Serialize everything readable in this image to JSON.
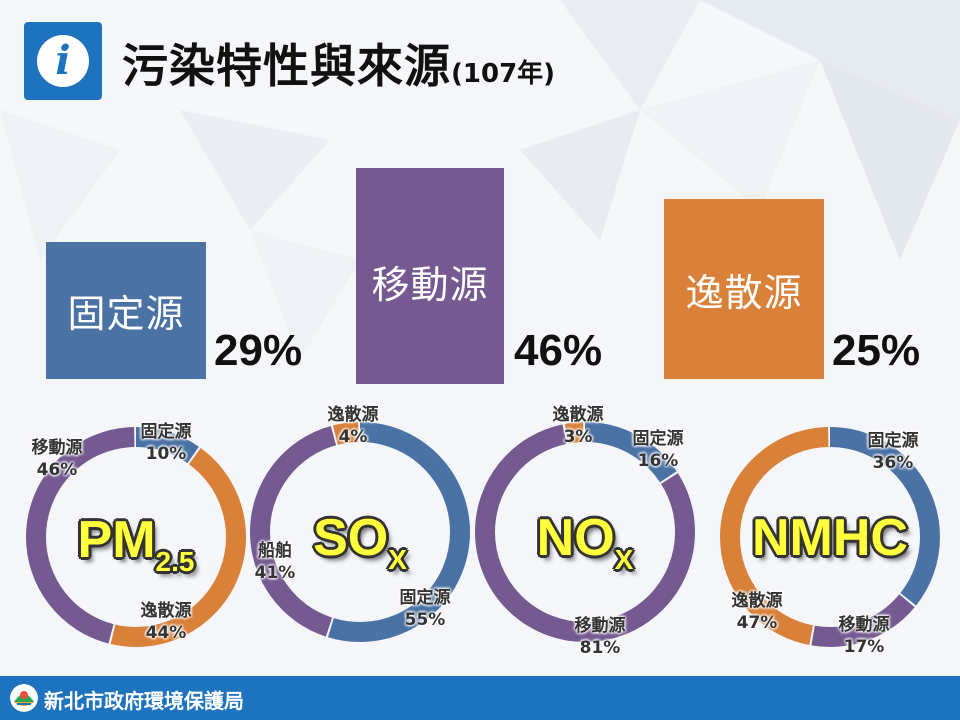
{
  "header": {
    "title": "污染特性與來源",
    "year": "(107年)",
    "info_icon": "info-icon"
  },
  "summary": [
    {
      "label": "固定源",
      "percent": "29%",
      "value": 29,
      "color": "#4a72a5"
    },
    {
      "label": "移動源",
      "percent": "46%",
      "value": 46,
      "color": "#755a92"
    },
    {
      "label": "逸散源",
      "percent": "25%",
      "value": 25,
      "color": "#d98039"
    }
  ],
  "colors": {
    "stationary": "#4a72a5",
    "mobile": "#755a92",
    "fugitive": "#d98039",
    "highlight": "#ffff3c",
    "brand": "#1e73be"
  },
  "chart_data": [
    {
      "type": "pie",
      "title": "PM",
      "title_sub": "2.5",
      "slices": [
        {
          "label": "固定源",
          "pct": "10%",
          "value": 10,
          "color": "#4a72a5"
        },
        {
          "label": "逸散源",
          "pct": "44%",
          "value": 44,
          "color": "#d98039"
        },
        {
          "label": "移動源",
          "pct": "46%",
          "value": 46,
          "color": "#755a92"
        }
      ]
    },
    {
      "type": "pie",
      "title": "SO",
      "title_sub": "X",
      "slices": [
        {
          "label": "固定源",
          "pct": "55%",
          "value": 55,
          "color": "#4a72a5"
        },
        {
          "label": "船舶",
          "pct": "41%",
          "value": 41,
          "color": "#755a92"
        },
        {
          "label": "逸散源",
          "pct": "4%",
          "value": 4,
          "color": "#d98039"
        }
      ]
    },
    {
      "type": "pie",
      "title": "NO",
      "title_sub": "X",
      "slices": [
        {
          "label": "固定源",
          "pct": "16%",
          "value": 16,
          "color": "#4a72a5"
        },
        {
          "label": "移動源",
          "pct": "81%",
          "value": 81,
          "color": "#755a92"
        },
        {
          "label": "逸散源",
          "pct": "3%",
          "value": 3,
          "color": "#d98039"
        }
      ]
    },
    {
      "type": "pie",
      "title": "NMHC",
      "title_sub": "",
      "slices": [
        {
          "label": "固定源",
          "pct": "36%",
          "value": 36,
          "color": "#4a72a5"
        },
        {
          "label": "移動源",
          "pct": "17%",
          "value": 17,
          "color": "#755a92"
        },
        {
          "label": "逸散源",
          "pct": "47%",
          "value": 47,
          "color": "#d98039"
        }
      ]
    }
  ],
  "footer": {
    "org": "新北市政府環境保護局",
    "logo_icon": "ntpc-epa-logo-icon"
  }
}
